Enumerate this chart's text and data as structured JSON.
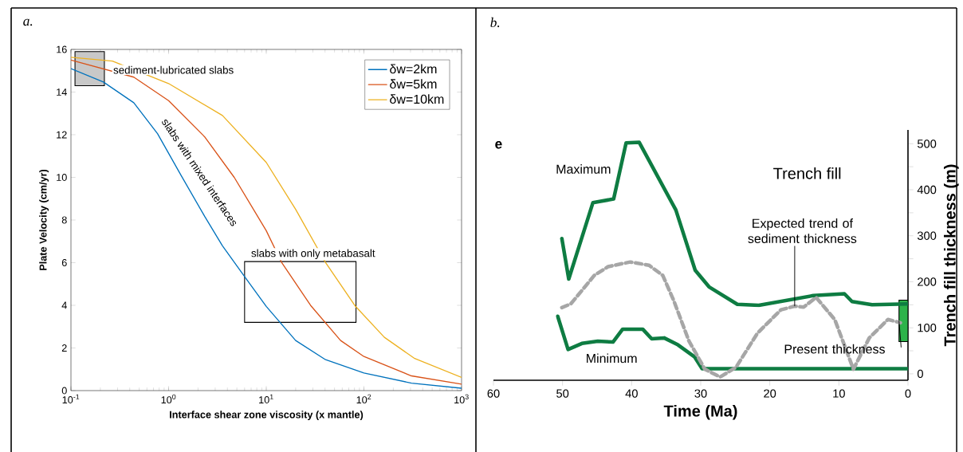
{
  "chart_data": [
    {
      "type": "line",
      "title": "a.",
      "xlabel": "Interface shear zone viscosity  (x  mantle)",
      "ylabel": "Plate Velocity (cm/yr)",
      "log": "x",
      "xlim": [
        0.1,
        1000
      ],
      "ylim": [
        0,
        16
      ],
      "xticks": [
        {
          "value": 0.1,
          "label": "10$^{-1}$"
        },
        {
          "value": 1,
          "label": "10$^{0}$"
        },
        {
          "value": 10,
          "label": "10$^{1}$"
        },
        {
          "value": 100,
          "label": "10$^{2}$"
        },
        {
          "value": 1000,
          "label": "10$^{3}$"
        }
      ],
      "yticks": [
        0,
        2,
        4,
        6,
        8,
        10,
        12,
        14,
        16
      ],
      "legend": "top right",
      "annotations": [
        "sediment-lubricated slabs",
        "slabs with mixed interfaces",
        "slabs with only metabasalt"
      ],
      "series": [
        {
          "type": "area",
          "x": [
            0.11,
            0.11,
            0.22,
            0.22
          ],
          "values": [
            14.3,
            15.9,
            15.9,
            14.3
          ],
          "color": "#c8c8c8"
        },
        {
          "type": "area",
          "x": [
            6,
            6,
            83,
            83
          ],
          "values": [
            3.2,
            6.05,
            6.05,
            3.2
          ],
          "color": "#ffffff"
        },
        {
          "name": "δw=2km",
          "color": "#0072bd",
          "x": [
            0.1,
            0.215,
            0.44,
            0.77,
            1.34,
            2.34,
            3.56,
            6.2,
            10,
            20,
            40.5,
            100,
            307,
            1000
          ],
          "values": [
            15.1,
            14.47,
            13.5,
            12.05,
            10.1,
            8.17,
            6.79,
            5.26,
            3.95,
            2.35,
            1.45,
            0.83,
            0.35,
            0.11
          ]
        },
        {
          "name": "δw=5km",
          "color": "#d95319",
          "x": [
            0.1,
            0.44,
            1,
            2.34,
            4.7,
            10,
            14.4,
            28.4,
            57.7,
            100,
            307,
            1000
          ],
          "values": [
            15.5,
            14.7,
            13.6,
            11.9,
            10,
            7.5,
            6,
            4,
            2.35,
            1.6,
            0.69,
            0.3
          ]
        },
        {
          "name": "δw=10km",
          "color": "#edb120",
          "x": [
            0.1,
            0.266,
            1,
            3.56,
            10,
            20,
            40.5,
            82,
            162,
            327,
            1000
          ],
          "values": [
            15.63,
            15.45,
            14.4,
            12.9,
            10.7,
            8.5,
            6,
            3.95,
            2.5,
            1.52,
            0.62
          ]
        }
      ]
    },
    {
      "type": "line",
      "title": "b.",
      "xlabel": "Time (Ma)",
      "y2label": "Trench fill thickness (m)",
      "xlim": [
        60,
        0
      ],
      "y2lim": [
        -14,
        530
      ],
      "xticks": [
        60,
        50,
        40,
        30,
        20,
        10,
        0
      ],
      "y2ticks": [
        0,
        {
          "value": 50,
          "label": null
        },
        100,
        {
          "value": 150,
          "label": null
        },
        200,
        {
          "value": 250,
          "label": null
        },
        300,
        {
          "value": 350,
          "label": null
        },
        400,
        {
          "value": 450,
          "label": null
        },
        500
      ],
      "annotations": [
        "e",
        "Trench fill"
      ],
      "series": [
        {
          "name": "Present thickness",
          "type": "area",
          "axis": "y2",
          "color": "#2db34a",
          "x": [
            0,
            0,
            1.3,
            1.3
          ],
          "values": [
            70,
            160,
            160,
            70
          ]
        },
        {
          "name": "Maximum",
          "axis": "y2",
          "color": "#0e7c42",
          "x": [
            50.1,
            49.1,
            45.6,
            42.6,
            40.8,
            38.9,
            33.6,
            30.8,
            28.8,
            24.7,
            21.6,
            13.7,
            9.2,
            8.1,
            5.2,
            0
          ],
          "values": [
            294,
            206,
            372,
            380,
            502,
            503,
            356,
            225,
            189,
            151,
            149,
            170,
            174,
            157,
            150,
            152
          ]
        },
        {
          "name": "Minimum",
          "axis": "y2",
          "color": "#0e7c42",
          "x": [
            50.7,
            49.2,
            47.2,
            44.9,
            42.7,
            41.3,
            38.4,
            37.1,
            35.3,
            33.3,
            30.9,
            29.8,
            0
          ],
          "values": [
            125,
            53,
            66,
            71,
            69,
            97,
            97,
            76,
            78,
            63,
            37,
            11,
            11
          ]
        },
        {
          "name": "Expected trend of sediment thickness",
          "axis": "y2",
          "color": "#a6a6a6",
          "line_style": "dashed",
          "x": [
            50.1,
            48.8,
            47.2,
            45.4,
            43.4,
            40.2,
            37.5,
            35.5,
            33.9,
            31.7,
            29.4,
            27.2,
            24.9,
            21.8,
            18.4,
            16.4,
            15.1,
            13.3,
            10.6,
            7.9,
            5.6,
            2.9,
            1.1
          ],
          "values": [
            144,
            152,
            181,
            214,
            233,
            243,
            236,
            214,
            159,
            71,
            10,
            -7,
            14,
            88,
            139,
            147,
            145,
            166,
            118,
            10,
            78,
            118,
            111
          ]
        }
      ]
    }
  ]
}
